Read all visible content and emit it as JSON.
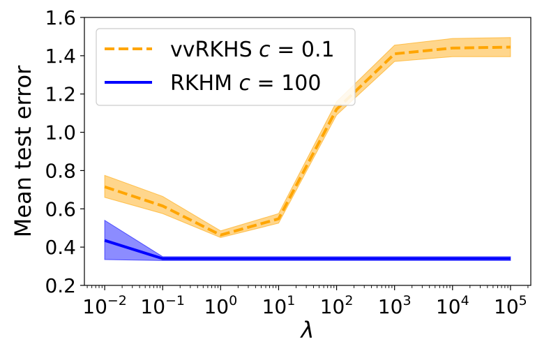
{
  "chart_data": {
    "type": "line",
    "title": "",
    "xlabel": "λ",
    "ylabel": "Mean test error",
    "xscale": "log10",
    "x": [
      0.01,
      0.1,
      1,
      10,
      100,
      1000,
      10000,
      100000
    ],
    "xlim_log10": [
      -2.35,
      5.35
    ],
    "ylim": [
      0.2,
      1.6
    ],
    "yticks": [
      0.2,
      0.4,
      0.6,
      0.8,
      1.0,
      1.2,
      1.4,
      1.6
    ],
    "ytick_labels": [
      "0.2",
      "0.4",
      "0.6",
      "0.8",
      "1.0",
      "1.2",
      "1.4",
      "1.6"
    ],
    "xticks": [
      {
        "base": "10",
        "exp": "−2"
      },
      {
        "base": "10",
        "exp": "−1"
      },
      {
        "base": "10",
        "exp": "0"
      },
      {
        "base": "10",
        "exp": "1"
      },
      {
        "base": "10",
        "exp": "2"
      },
      {
        "base": "10",
        "exp": "3"
      },
      {
        "base": "10",
        "exp": "4"
      },
      {
        "base": "10",
        "exp": "5"
      }
    ],
    "legend_position": "top-left",
    "series": [
      {
        "name": "vvRKHS",
        "param_var": "c",
        "param_value": "= 0.1",
        "color": "#FFA500",
        "style": "dashed",
        "values": [
          0.715,
          0.615,
          0.463,
          0.548,
          1.12,
          1.41,
          1.44,
          1.445
        ],
        "lower": [
          0.66,
          0.575,
          0.45,
          0.525,
          1.09,
          1.37,
          1.395,
          1.395
        ],
        "upper": [
          0.775,
          0.665,
          0.485,
          0.575,
          1.16,
          1.455,
          1.49,
          1.495
        ]
      },
      {
        "name": "RKHM",
        "param_var": "c",
        "param_value": "= 100",
        "color": "#0000FF",
        "style": "solid",
        "values": [
          0.435,
          0.34,
          0.34,
          0.34,
          0.34,
          0.34,
          0.34,
          0.34
        ],
        "lower": [
          0.335,
          0.33,
          0.33,
          0.33,
          0.33,
          0.33,
          0.33,
          0.33
        ],
        "upper": [
          0.54,
          0.35,
          0.35,
          0.35,
          0.35,
          0.35,
          0.35,
          0.35
        ]
      }
    ]
  }
}
